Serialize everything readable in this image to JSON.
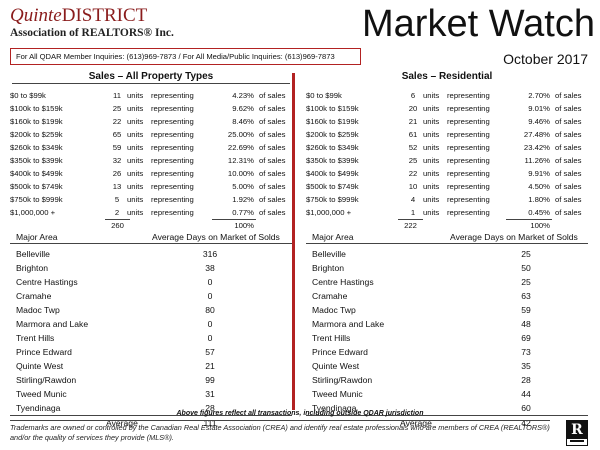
{
  "logo": {
    "name_italic": "Quinte",
    "name_rest": "DISTRICT",
    "association": "Association of REALTORS® Inc."
  },
  "header": {
    "title": "Market Watch",
    "subtitle": "October 2017",
    "inquiries": "For All QDAR Member Inquiries: (613)969-7873 / For All Media/Public Inquiries: (613)969-7873"
  },
  "accent_color": "#b22222",
  "sales_all": {
    "heading": "Sales – All Property Types",
    "rows": [
      {
        "range": "$0 to $99k",
        "count": "11",
        "units": "units",
        "rep": "representing",
        "pct": "4.23%",
        "of": "of sales"
      },
      {
        "range": "$100k to $159k",
        "count": "25",
        "units": "units",
        "rep": "representing",
        "pct": "9.62%",
        "of": "of sales"
      },
      {
        "range": "$160k to $199k",
        "count": "22",
        "units": "units",
        "rep": "representing",
        "pct": "8.46%",
        "of": "of sales"
      },
      {
        "range": "$200k to $259k",
        "count": "65",
        "units": "units",
        "rep": "representing",
        "pct": "25.00%",
        "of": "of sales"
      },
      {
        "range": "$260k to $349k",
        "count": "59",
        "units": "units",
        "rep": "representing",
        "pct": "22.69%",
        "of": "of sales"
      },
      {
        "range": "$350k to $399k",
        "count": "32",
        "units": "units",
        "rep": "representing",
        "pct": "12.31%",
        "of": "of sales"
      },
      {
        "range": "$400k to $499k",
        "count": "26",
        "units": "units",
        "rep": "representing",
        "pct": "10.00%",
        "of": "of sales"
      },
      {
        "range": "$500k to $749k",
        "count": "13",
        "units": "units",
        "rep": "representing",
        "pct": "5.00%",
        "of": "of sales"
      },
      {
        "range": "$750k to $999k",
        "count": "5",
        "units": "units",
        "rep": "representing",
        "pct": "1.92%",
        "of": "of sales"
      },
      {
        "range": "$1,000,000 +",
        "count": "2",
        "units": "units",
        "rep": "representing",
        "pct": "0.77%",
        "of": "of sales"
      }
    ],
    "total_count": "260",
    "total_pct": "100%"
  },
  "sales_res": {
    "heading": "Sales – Residential",
    "rows": [
      {
        "range": "$0 to $99k",
        "count": "6",
        "units": "units",
        "rep": "representing",
        "pct": "2.70%",
        "of": "of sales"
      },
      {
        "range": "$100k to $159k",
        "count": "20",
        "units": "units",
        "rep": "representing",
        "pct": "9.01%",
        "of": "of sales"
      },
      {
        "range": "$160k to $199k",
        "count": "21",
        "units": "units",
        "rep": "representing",
        "pct": "9.46%",
        "of": "of sales"
      },
      {
        "range": "$200k to $259k",
        "count": "61",
        "units": "units",
        "rep": "representing",
        "pct": "27.48%",
        "of": "of sales"
      },
      {
        "range": "$260k to $349k",
        "count": "52",
        "units": "units",
        "rep": "representing",
        "pct": "23.42%",
        "of": "of sales"
      },
      {
        "range": "$350k to $399k",
        "count": "25",
        "units": "units",
        "rep": "representing",
        "pct": "11.26%",
        "of": "of sales"
      },
      {
        "range": "$400k to $499k",
        "count": "22",
        "units": "units",
        "rep": "representing",
        "pct": "9.91%",
        "of": "of sales"
      },
      {
        "range": "$500k to $749k",
        "count": "10",
        "units": "units",
        "rep": "representing",
        "pct": "4.50%",
        "of": "of sales"
      },
      {
        "range": "$750k to $999k",
        "count": "4",
        "units": "units",
        "rep": "representing",
        "pct": "1.80%",
        "of": "of sales"
      },
      {
        "range": "$1,000,000 +",
        "count": "1",
        "units": "units",
        "rep": "representing",
        "pct": "0.45%",
        "of": "of sales"
      }
    ],
    "total_count": "222",
    "total_pct": "100%"
  },
  "dom_all": {
    "col_area": "Major Area",
    "col_days": "Average Days on Market of Solds",
    "rows": [
      {
        "area": "Belleville",
        "days": "316"
      },
      {
        "area": "Brighton",
        "days": "38"
      },
      {
        "area": "Centre Hastings",
        "days": "0"
      },
      {
        "area": "Cramahe",
        "days": "0"
      },
      {
        "area": "Madoc Twp",
        "days": "80"
      },
      {
        "area": "Marmora and Lake",
        "days": "0"
      },
      {
        "area": "Trent Hills",
        "days": "0"
      },
      {
        "area": "Prince Edward",
        "days": "57"
      },
      {
        "area": "Quinte West",
        "days": "21"
      },
      {
        "area": "Stirling/Rawdon",
        "days": "99"
      },
      {
        "area": "Tweed Munic",
        "days": "31"
      },
      {
        "area": "Tyendinaga",
        "days": "28"
      }
    ],
    "avg_label": "Average",
    "avg_value": "111"
  },
  "dom_res": {
    "col_area": "Major Area",
    "col_days": "Average Days on Market of Solds",
    "rows": [
      {
        "area": "Belleville",
        "days": "25"
      },
      {
        "area": "Brighton",
        "days": "50"
      },
      {
        "area": "Centre Hastings",
        "days": "25"
      },
      {
        "area": "Cramahe",
        "days": "63"
      },
      {
        "area": "Madoc Twp",
        "days": "59"
      },
      {
        "area": "Marmora and Lake",
        "days": "48"
      },
      {
        "area": "Trent Hills",
        "days": "69"
      },
      {
        "area": "Prince Edward",
        "days": "73"
      },
      {
        "area": "Quinte West",
        "days": "35"
      },
      {
        "area": "Stirling/Rawdon",
        "days": "28"
      },
      {
        "area": "Tweed Munic",
        "days": "44"
      },
      {
        "area": "Tyendinaga",
        "days": "60"
      }
    ],
    "avg_label": "Average",
    "avg_value": "42"
  },
  "footnote": "Above figures reflect all transactions, including outside QDAR jurisdiction",
  "disclaimer": "Trademarks are owned or controlled by the Canadian Real Estate Association (CREA) and identify real estate professionals who are members of CREA (REALTORS®) and/or the quality of services they provide (MLS®).",
  "realtor_logo": {
    "letter": "R",
    "icon": "realtor-r-logo-icon"
  }
}
